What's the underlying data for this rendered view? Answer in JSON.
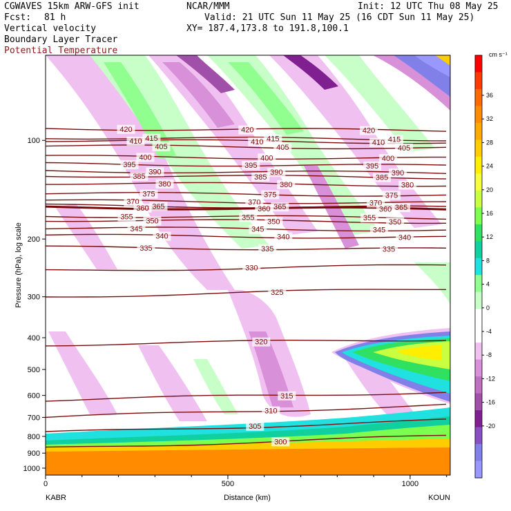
{
  "header": {
    "model": "CGWAVES 15km ARW-GFS init",
    "fcst_label": "Fcst:",
    "fcst_value": "81 h",
    "field1": "Vertical velocity",
    "field2": "Boundary Layer Tracer",
    "field3": "Potential Temperature",
    "center": "NCAR/MMM",
    "init": "Init: 12 UTC Thu 08 May 25",
    "valid": "Valid: 21 UTC Sun 11 May 25 (16 CDT Sun 11 May 25)",
    "xy": "XY= 187.4,173.8 to 191.8,100.1"
  },
  "colors": {
    "theta": "#7a0a0a",
    "field3_text": "#8b1a1a"
  },
  "chart_data": {
    "type": "heatmap",
    "xlabel": "Distance (km)",
    "ylabel": "Pressure (hPa), log scale",
    "xlim": [
      0,
      1110
    ],
    "ylim": [
      1050,
      55
    ],
    "yscale": "log",
    "x_ticks": [
      "0",
      "500",
      "1000"
    ],
    "x_tick_values": [
      0,
      500,
      1000
    ],
    "y_ticks": [
      "100",
      "200",
      "300",
      "400",
      "500",
      "600",
      "700",
      "800",
      "900",
      "1000"
    ],
    "y_tick_values": [
      100,
      200,
      300,
      400,
      500,
      600,
      700,
      800,
      900,
      1000
    ],
    "left_endpoint": "KABR",
    "right_endpoint": "KOUN",
    "colorbar": {
      "units": "cm s⁻¹",
      "labels": [
        "36",
        "32",
        "28",
        "24",
        "20",
        "16",
        "12",
        "8",
        "4",
        "0",
        "-4",
        "-8",
        "-12",
        "-16",
        "-20"
      ],
      "colors": [
        "#ff0000",
        "#ff3a00",
        "#ff6a00",
        "#ff8c00",
        "#ffaa00",
        "#ffcc00",
        "#ffee00",
        "#f5ff40",
        "#c8ff40",
        "#7dff50",
        "#30e060",
        "#10d0a0",
        "#20e0e0",
        "#90ff90",
        "#c8ffc8",
        "#ffffff",
        "#ffffff",
        "#f0c0f0",
        "#d890d8",
        "#c070c0",
        "#a050a8",
        "#802090",
        "#8850c0",
        "#8080e8",
        "#9898ff"
      ]
    },
    "theta_contours": [
      {
        "label": "420",
        "p": 92
      },
      {
        "label": "415",
        "p": 98
      },
      {
        "label": "410",
        "p": 100
      },
      {
        "label": "405",
        "p": 104
      },
      {
        "label": "400",
        "p": 112
      },
      {
        "label": "395",
        "p": 118
      },
      {
        "label": "390",
        "p": 124
      },
      {
        "label": "385",
        "p": 128
      },
      {
        "label": "380",
        "p": 135
      },
      {
        "label": "375",
        "p": 145
      },
      {
        "label": "370",
        "p": 153
      },
      {
        "label": "365",
        "p": 158
      },
      {
        "label": "360",
        "p": 160
      },
      {
        "label": "355",
        "p": 170
      },
      {
        "label": "350",
        "p": 175
      },
      {
        "label": "345",
        "p": 185
      },
      {
        "label": "340",
        "p": 195
      },
      {
        "label": "335",
        "p": 212
      },
      {
        "label": "330",
        "p": 250
      },
      {
        "label": "325",
        "p": 300
      },
      {
        "label": "320",
        "p": 420
      },
      {
        "label": "315",
        "p": 620
      },
      {
        "label": "310",
        "p": 700
      },
      {
        "label": "305",
        "p": 780
      },
      {
        "label": "300",
        "p": 870
      }
    ]
  }
}
